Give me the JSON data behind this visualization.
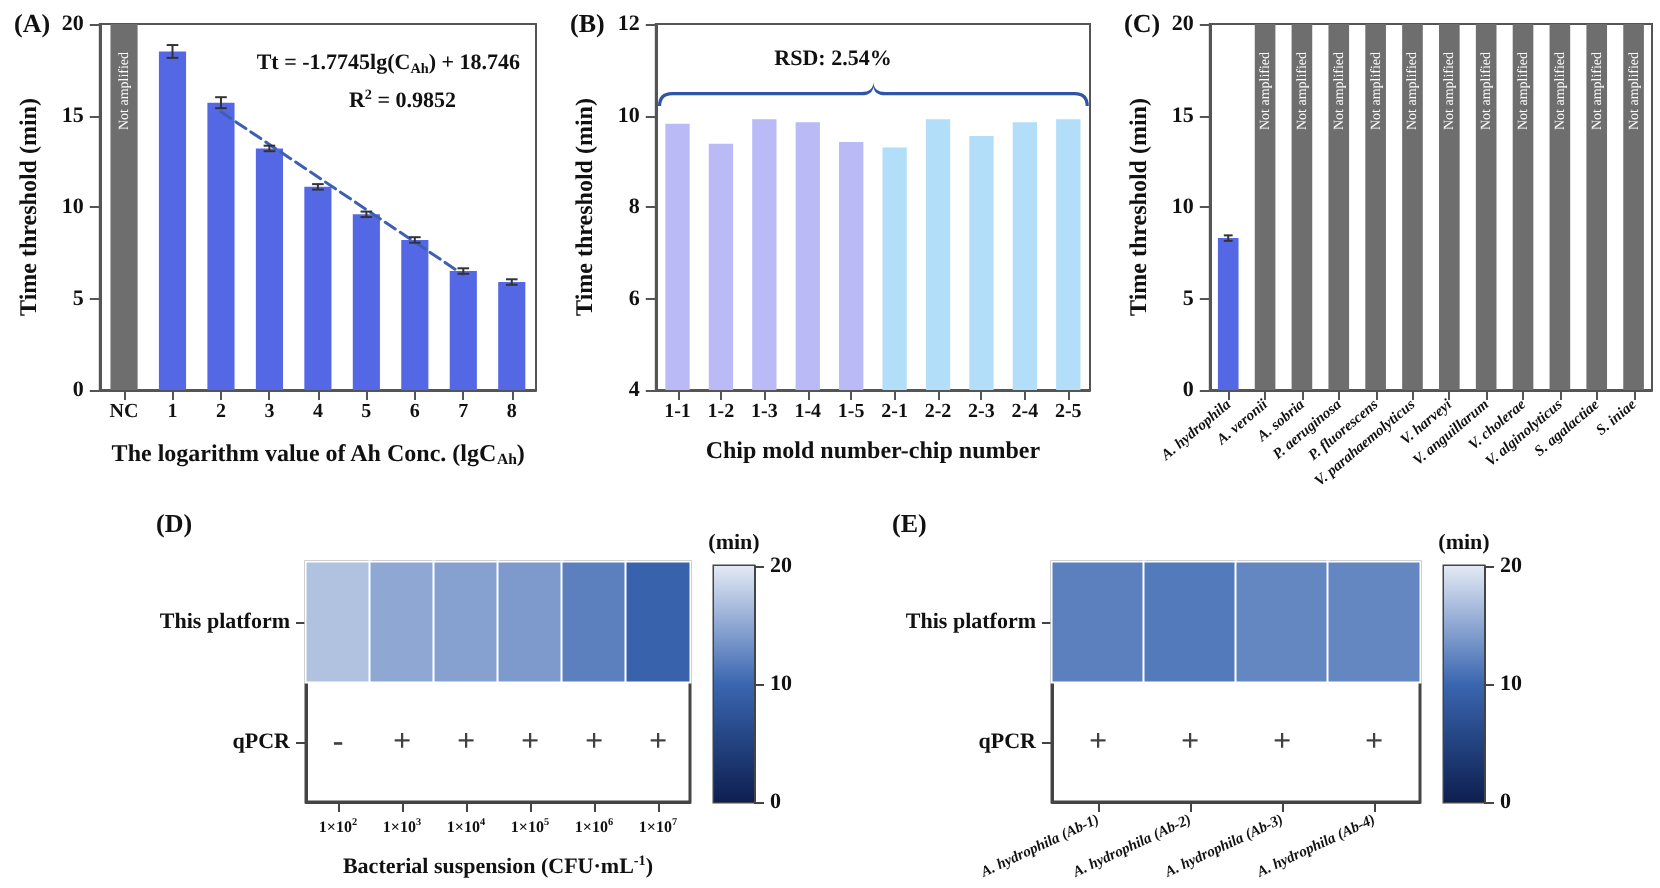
{
  "chart_data": [
    {
      "type": "bar",
      "title": "(A)",
      "xlabel": "The logarithm value of Ah Conc. (lgC$_{Ah}$)",
      "ylabel": "Time threshold (min)",
      "categories": [
        "NC",
        "1",
        "2",
        "3",
        "4",
        "5",
        "6",
        "7",
        "8"
      ],
      "ylim": [
        0,
        20
      ],
      "yticks": [
        0,
        5,
        10,
        15,
        20
      ],
      "annotations": [
        "Tt = -1.7745lg(C$_{Ah}$) + 18.746",
        "R$^{2}$ = 0.9852"
      ],
      "series": [
        {
          "type": "bar",
          "colors": [
            "#6e6e6e",
            "#5468e6",
            "#5468e6",
            "#5468e6",
            "#5468e6",
            "#5468e6",
            "#5468e6",
            "#5468e6",
            "#5468e6"
          ],
          "values": [
            20,
            18.5,
            15.7,
            13.2,
            11.1,
            9.6,
            8.2,
            6.5,
            5.9
          ],
          "errors": [
            null,
            0.35,
            0.3,
            0.15,
            0.15,
            0.15,
            0.15,
            0.15,
            0.15
          ],
          "value_labels": [
            "Not amplified",
            null,
            null,
            null,
            null,
            null,
            null,
            null,
            null
          ]
        },
        {
          "type": "line",
          "color": "#3f5fb5",
          "x": [
            "2",
            "7"
          ],
          "values": [
            15.2,
            6.3
          ],
          "line_style": "dashed",
          "marker": "none"
        }
      ]
    },
    {
      "type": "bar",
      "title": "(B)",
      "xlabel": "Chip mold number-chip number",
      "ylabel": "Time threshold (min)",
      "categories": [
        "1-1",
        "1-2",
        "1-3",
        "1-4",
        "1-5",
        "2-1",
        "2-2",
        "2-3",
        "2-4",
        "2-5"
      ],
      "values": [
        9.82,
        9.38,
        9.92,
        9.85,
        9.42,
        9.3,
        9.92,
        9.55,
        9.85,
        9.92
      ],
      "colors": [
        "#babaf6",
        "#babaf6",
        "#babaf6",
        "#babaf6",
        "#babaf6",
        "#b2def9",
        "#b2def9",
        "#b2def9",
        "#b2def9",
        "#b2def9"
      ],
      "ylim": [
        4,
        12
      ],
      "yticks": [
        4,
        6,
        8,
        10,
        12
      ],
      "annotations": [
        "RSD: 2.54%"
      ]
    },
    {
      "type": "bar",
      "title": "(C)",
      "ylabel": "Time threshold (min)",
      "categories": [
        "A. hydrophila",
        "A. veronii",
        "A. sobria",
        "P. aeruginosa",
        "P. fluorescens",
        "V. parahaemolyticus",
        "V. harveyi",
        "V. anguillarum",
        "V. cholerae",
        "V. alginolyticus",
        "S. agalactiae",
        "S. iniae"
      ],
      "ylim": [
        0,
        20
      ],
      "yticks": [
        0,
        5,
        10,
        15,
        20
      ],
      "series": [
        {
          "type": "bar",
          "colors": [
            "#5468e6",
            "#6e6e6e",
            "#6e6e6e",
            "#6e6e6e",
            "#6e6e6e",
            "#6e6e6e",
            "#6e6e6e",
            "#6e6e6e",
            "#6e6e6e",
            "#6e6e6e",
            "#6e6e6e",
            "#6e6e6e"
          ],
          "values": [
            8.3,
            20,
            20,
            20,
            20,
            20,
            20,
            20,
            20,
            20,
            20,
            20
          ],
          "errors": [
            0.15,
            null,
            null,
            null,
            null,
            null,
            null,
            null,
            null,
            null,
            null,
            null
          ],
          "value_labels": [
            null,
            "Not amplified",
            "Not amplified",
            "Not amplified",
            "Not amplified",
            "Not amplified",
            "Not amplified",
            "Not amplified",
            "Not amplified",
            "Not amplified",
            "Not amplified",
            "Not amplified"
          ]
        }
      ]
    },
    {
      "type": "heatmap",
      "title": "(D)",
      "xlabel": "Bacterial suspension (CFU·mL$^{-1}$)",
      "clabel": "(min)",
      "categories": [
        "1×10$^{2}$",
        "1×10$^{3}$",
        "1×10$^{4}$",
        "1×10$^{5}$",
        "1×10$^{6}$",
        "1×10$^{7}$"
      ],
      "y_categories": [
        "This platform",
        "qPCR"
      ],
      "cells": [
        [
          17,
          15,
          14.5,
          14,
          12,
          9.5
        ],
        [
          null,
          null,
          null,
          null,
          null,
          null
        ]
      ],
      "cell_labels": [
        [
          null,
          null,
          null,
          null,
          null,
          null
        ],
        [
          "-",
          "+",
          "+",
          "+",
          "+",
          "+"
        ]
      ],
      "clim": [
        0,
        20
      ],
      "cticks": [
        0,
        10,
        20
      ]
    },
    {
      "type": "heatmap",
      "title": "(E)",
      "clabel": "(min)",
      "categories": [
        "A. hydrophila (Ab-1)",
        "A. hydrophila (Ab-2)",
        "A. hydrophila (Ab-3)",
        "A. hydrophila (Ab-4)"
      ],
      "y_categories": [
        "This platform",
        "qPCR"
      ],
      "cells": [
        [
          12,
          11.5,
          12.5,
          12.5
        ],
        [
          null,
          null,
          null,
          null
        ]
      ],
      "cell_labels": [
        [
          null,
          null,
          null,
          null
        ],
        [
          "+",
          "+",
          "+",
          "+"
        ]
      ],
      "clim": [
        0,
        20
      ],
      "cticks": [
        0,
        10,
        20
      ]
    }
  ]
}
